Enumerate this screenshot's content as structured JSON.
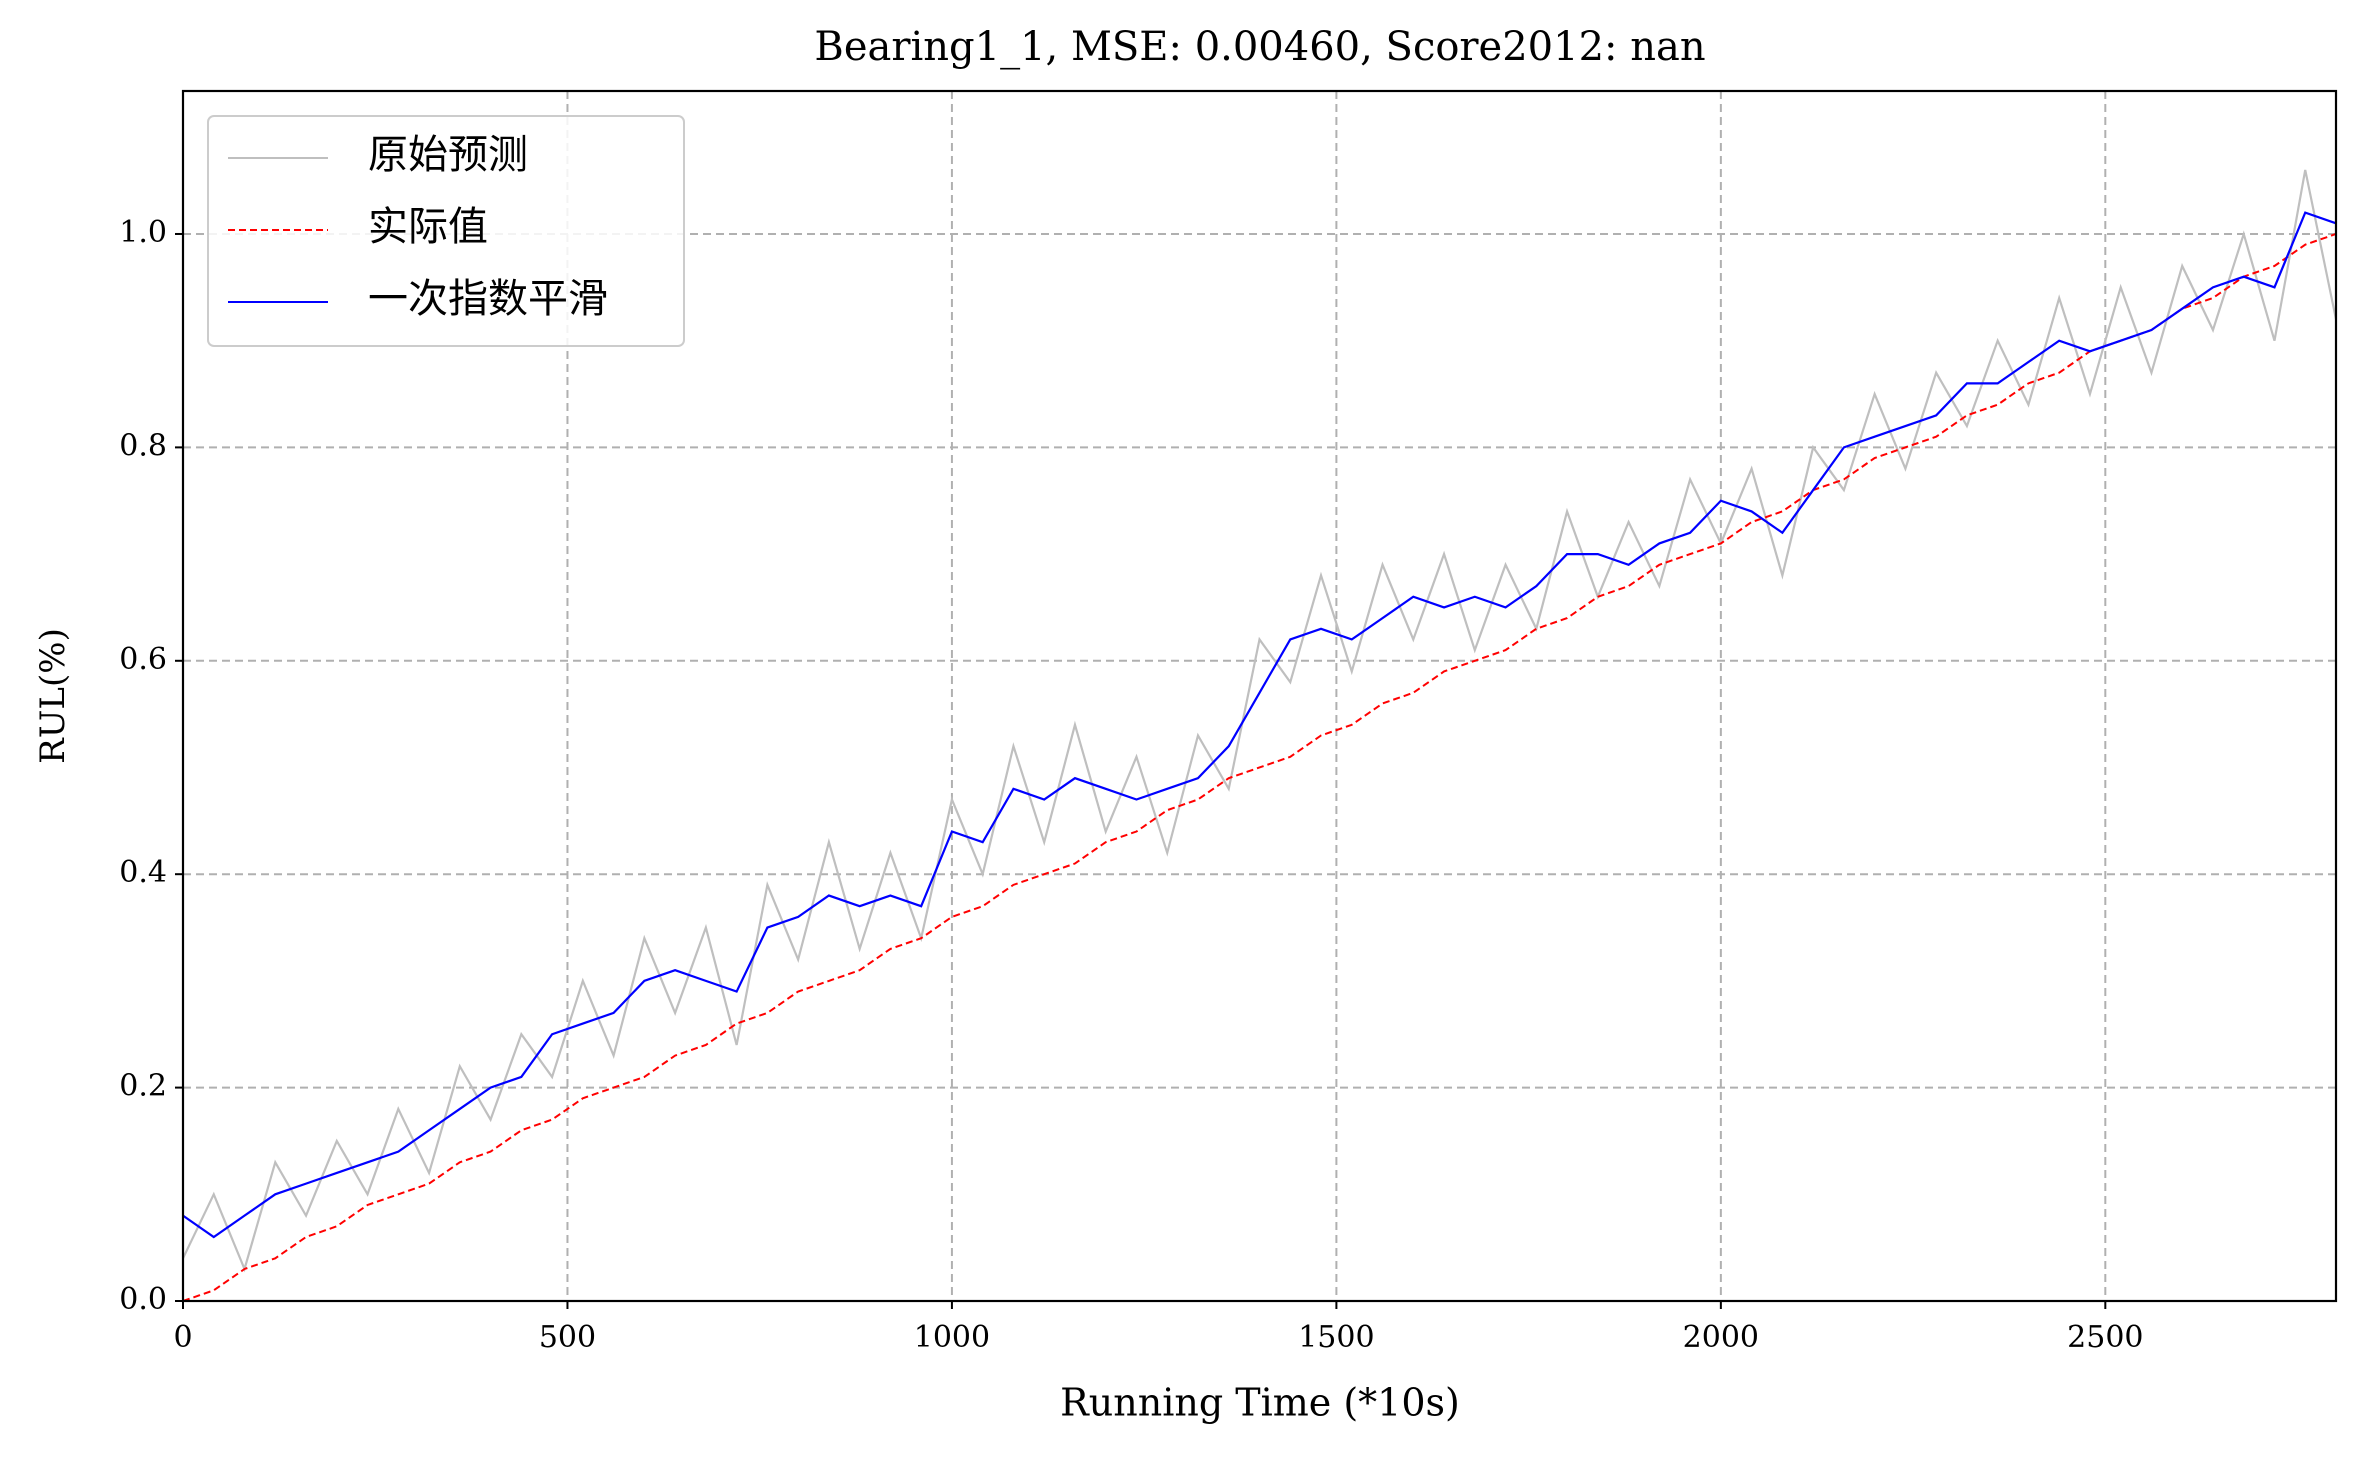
{
  "chart_data": {
    "type": "line",
    "title": "Bearing1_1, MSE: 0.00460, Score2012: nan",
    "x_label": "Running Time (*10s)",
    "y_label": "RUL(%)",
    "x": [
      0,
      40,
      80,
      120,
      160,
      200,
      240,
      280,
      320,
      360,
      400,
      440,
      480,
      520,
      560,
      600,
      640,
      680,
      720,
      760,
      800,
      840,
      880,
      920,
      960,
      1000,
      1040,
      1080,
      1120,
      1160,
      1200,
      1240,
      1280,
      1320,
      1360,
      1400,
      1440,
      1480,
      1520,
      1560,
      1600,
      1640,
      1680,
      1720,
      1760,
      1800,
      1840,
      1880,
      1920,
      1960,
      2000,
      2040,
      2080,
      2120,
      2160,
      2200,
      2240,
      2280,
      2320,
      2360,
      2400,
      2440,
      2480,
      2520,
      2560,
      2600,
      2640,
      2680,
      2720,
      2760,
      2800
    ],
    "series": [
      {
        "name": "原始预测",
        "color": "#bfbfbf",
        "style": "solid",
        "values": [
          0.04,
          0.1,
          0.03,
          0.13,
          0.08,
          0.15,
          0.1,
          0.18,
          0.12,
          0.22,
          0.17,
          0.25,
          0.21,
          0.3,
          0.23,
          0.34,
          0.27,
          0.35,
          0.24,
          0.39,
          0.32,
          0.43,
          0.33,
          0.42,
          0.34,
          0.47,
          0.4,
          0.52,
          0.43,
          0.54,
          0.44,
          0.51,
          0.42,
          0.53,
          0.48,
          0.62,
          0.58,
          0.68,
          0.59,
          0.69,
          0.62,
          0.7,
          0.61,
          0.69,
          0.63,
          0.74,
          0.66,
          0.73,
          0.67,
          0.77,
          0.71,
          0.78,
          0.68,
          0.8,
          0.76,
          0.85,
          0.78,
          0.87,
          0.82,
          0.9,
          0.84,
          0.94,
          0.85,
          0.95,
          0.87,
          0.97,
          0.91,
          1.0,
          0.9,
          1.06,
          0.92
        ]
      },
      {
        "name": "实际值",
        "color": "#ff0000",
        "style": "dashed",
        "values": [
          0,
          0.01,
          0.03,
          0.04,
          0.06,
          0.07,
          0.09,
          0.1,
          0.11,
          0.13,
          0.14,
          0.16,
          0.17,
          0.19,
          0.2,
          0.21,
          0.23,
          0.24,
          0.26,
          0.27,
          0.29,
          0.3,
          0.31,
          0.33,
          0.34,
          0.36,
          0.37,
          0.39,
          0.4,
          0.41,
          0.43,
          0.44,
          0.46,
          0.47,
          0.49,
          0.5,
          0.51,
          0.53,
          0.54,
          0.56,
          0.57,
          0.59,
          0.6,
          0.61,
          0.63,
          0.64,
          0.66,
          0.67,
          0.69,
          0.7,
          0.71,
          0.73,
          0.74,
          0.76,
          0.77,
          0.79,
          0.8,
          0.81,
          0.83,
          0.84,
          0.86,
          0.87,
          0.89,
          0.9,
          0.91,
          0.93,
          0.94,
          0.96,
          0.97,
          0.99,
          1.0
        ]
      },
      {
        "name": "一次指数平滑",
        "color": "#0000ff",
        "style": "solid",
        "values": [
          0.08,
          0.06,
          0.08,
          0.1,
          0.11,
          0.12,
          0.13,
          0.14,
          0.16,
          0.18,
          0.2,
          0.21,
          0.25,
          0.26,
          0.27,
          0.3,
          0.31,
          0.3,
          0.29,
          0.35,
          0.36,
          0.38,
          0.37,
          0.38,
          0.37,
          0.44,
          0.43,
          0.48,
          0.47,
          0.49,
          0.48,
          0.47,
          0.48,
          0.49,
          0.52,
          0.57,
          0.62,
          0.63,
          0.62,
          0.64,
          0.66,
          0.65,
          0.66,
          0.65,
          0.67,
          0.7,
          0.7,
          0.69,
          0.71,
          0.72,
          0.75,
          0.74,
          0.72,
          0.76,
          0.8,
          0.81,
          0.82,
          0.83,
          0.86,
          0.86,
          0.88,
          0.9,
          0.89,
          0.9,
          0.91,
          0.93,
          0.95,
          0.96,
          0.95,
          1.02,
          1.01
        ]
      }
    ],
    "xlim": [
      0,
      2800
    ],
    "xticks": [
      0,
      500,
      1000,
      1500,
      2000,
      2500
    ],
    "ylim": [
      0,
      1.134
    ],
    "yticks": [
      {
        "value": 0,
        "label": "0.0"
      },
      0.2,
      0.4,
      0.6,
      0.8,
      {
        "value": 1,
        "label": "1.0"
      }
    ],
    "grid": true,
    "legend": "upper left"
  }
}
